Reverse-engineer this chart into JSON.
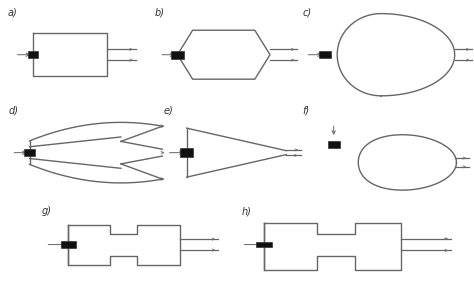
{
  "background_color": "#ffffff",
  "line_color": "#666666",
  "line_width": 1.0,
  "square_color": "#111111",
  "labels": [
    "a)",
    "b)",
    "c)",
    "d)",
    "e)",
    "f)",
    "g)",
    "h)"
  ],
  "label_fontsize": 7
}
